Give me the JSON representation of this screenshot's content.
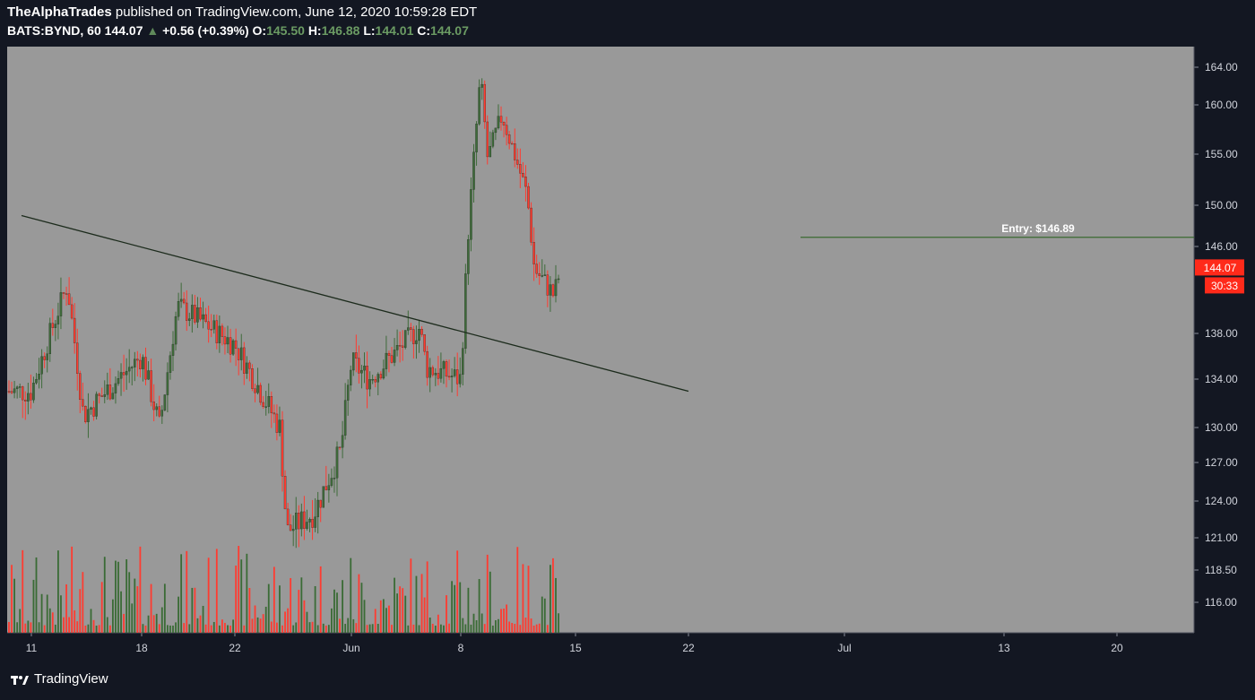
{
  "header": {
    "publisher": "TheAlphaTrades",
    "published_text": "published on TradingView.com, June 12, 2020 10:59:28 EDT",
    "symbol": "BATS:BYND, 60",
    "last": "144.07",
    "arrow": "▲",
    "change": "+0.56 (+0.39%)",
    "o_label": "O:",
    "o_value": "145.50",
    "h_label": "H:",
    "h_value": "146.88",
    "l_label": "L:",
    "l_value": "144.01",
    "c_label": "C:",
    "c_value": "144.07"
  },
  "footer": {
    "brand": "TradingView",
    "logo_icon": "tradingview-logo-icon"
  },
  "colors": {
    "background": "#131722",
    "pane": "#999999",
    "up": "#3f6b3a",
    "down": "#ff3b30",
    "trendline": "#1c2b1c",
    "entry_line": "#3a6a30",
    "price_badge": "#ff2a1a"
  },
  "chart_data": {
    "type": "candlestick",
    "symbol": "BATS:BYND",
    "interval": "60",
    "price_axis_ticks": [
      "164.00",
      "160.00",
      "155.00",
      "150.00",
      "146.00",
      "138.00",
      "134.00",
      "130.00",
      "127.00",
      "124.00",
      "121.00",
      "118.50",
      "116.00"
    ],
    "time_axis_ticks": [
      "11",
      "18",
      "22",
      "Jun",
      "8",
      "15",
      "22",
      "Jul",
      "13",
      "20"
    ],
    "ohlc_last": {
      "open": 145.5,
      "high": 146.88,
      "low": 144.01,
      "close": 144.07
    },
    "last_price_label": "144.07",
    "countdown_label": "30:33",
    "price_path": [
      {
        "date": "May 11",
        "price": 133.0
      },
      {
        "date": "May 13",
        "price": 142.5
      },
      {
        "date": "May 14",
        "price": 131.0
      },
      {
        "date": "May 18",
        "price": 136.0
      },
      {
        "date": "May 19",
        "price": 130.0
      },
      {
        "date": "May 20",
        "price": 140.5
      },
      {
        "date": "May 21",
        "price": 139.5
      },
      {
        "date": "May 22",
        "price": 137.0
      },
      {
        "date": "May 26",
        "price": 130.0
      },
      {
        "date": "May 26",
        "price": 121.5
      },
      {
        "date": "May 28",
        "price": 123.0
      },
      {
        "date": "May 29",
        "price": 128.0
      },
      {
        "date": "Jun 1",
        "price": 135.5
      },
      {
        "date": "Jun 2",
        "price": 134.0
      },
      {
        "date": "Jun 5",
        "price": 138.5
      },
      {
        "date": "Jun 5",
        "price": 135.0
      },
      {
        "date": "Jun 8",
        "price": 134.0
      },
      {
        "date": "Jun 8",
        "price": 147.0
      },
      {
        "date": "Jun 9",
        "price": 163.0
      },
      {
        "date": "Jun 9",
        "price": 154.5
      },
      {
        "date": "Jun 10",
        "price": 159.0
      },
      {
        "date": "Jun 11",
        "price": 151.0
      },
      {
        "date": "Jun 11",
        "price": 144.0
      },
      {
        "date": "Jun 12",
        "price": 141.5
      },
      {
        "date": "Jun 12",
        "price": 144.07
      }
    ],
    "trendline": {
      "start": {
        "date": "May 10",
        "price": 149.0
      },
      "end": {
        "date": "Jun 22",
        "price": 133.0
      }
    },
    "entry": {
      "label": "Entry: $146.89",
      "price": 146.89,
      "from_date": "Jun 30"
    }
  }
}
